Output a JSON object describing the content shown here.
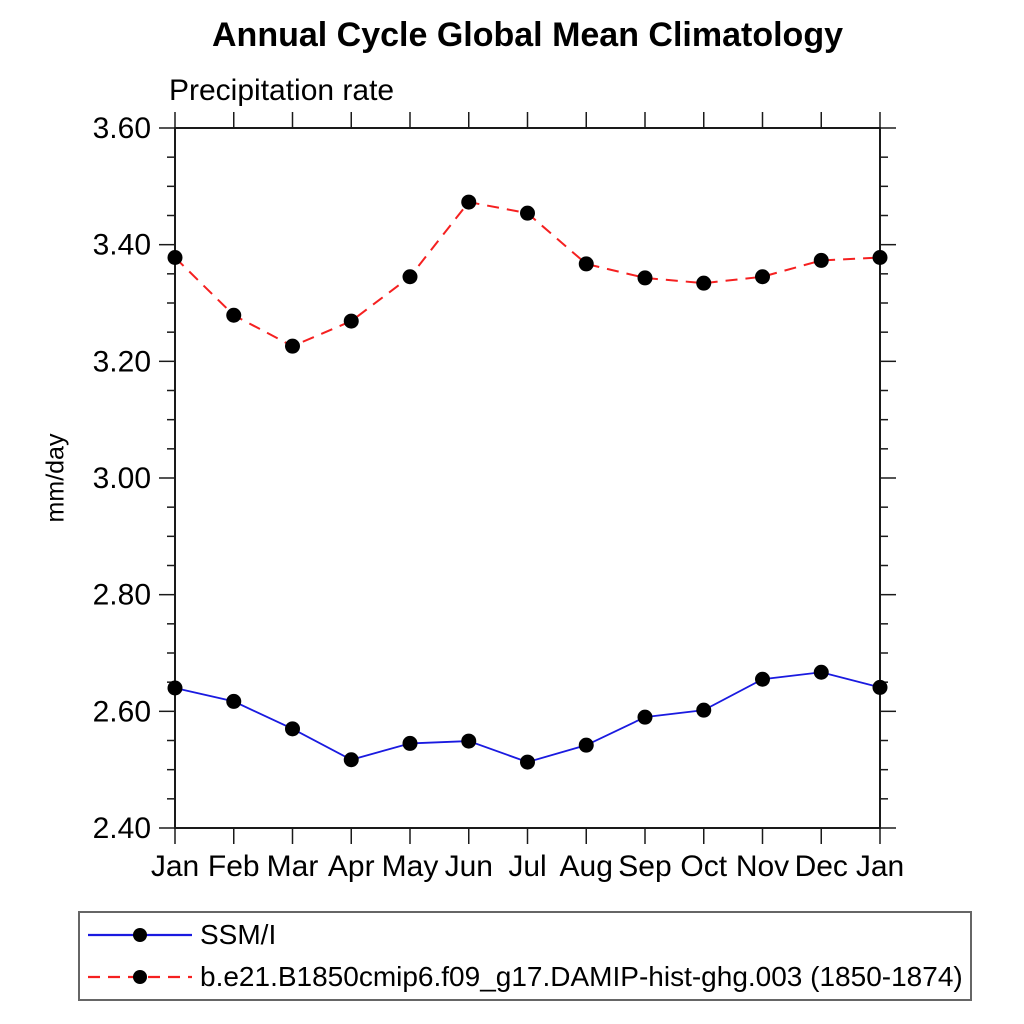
{
  "title": "Annual Cycle Global Mean Climatology",
  "subtitle": "Precipitation rate",
  "ylabel": "mm/day",
  "chart_data": {
    "type": "line",
    "title": "Annual Cycle Global Mean Climatology",
    "subtitle": "Precipitation rate",
    "xlabel": "",
    "ylabel": "mm/day",
    "categories": [
      "Jan",
      "Feb",
      "Mar",
      "Apr",
      "May",
      "Jun",
      "Jul",
      "Aug",
      "Sep",
      "Oct",
      "Nov",
      "Dec",
      "Jan"
    ],
    "ylim": [
      2.4,
      3.6
    ],
    "ytick_labels": [
      "2.40",
      "2.60",
      "2.80",
      "3.00",
      "3.20",
      "3.40",
      "3.60"
    ],
    "ytick_major_step": 0.2,
    "ytick_minor_step": 0.05,
    "grid": false,
    "legend_position": "bottom-left-box",
    "axis_color": "#1a1a1a",
    "marker_color": "#000000",
    "series": [
      {
        "name": "SSM/I",
        "color": "#1a1ae0",
        "line_style": "solid",
        "values": [
          2.64,
          2.617,
          2.57,
          2.517,
          2.545,
          2.549,
          2.513,
          2.542,
          2.59,
          2.602,
          2.655,
          2.667,
          2.641
        ]
      },
      {
        "name": "b.e21.B1850cmip6.f09_g17.DAMIP-hist-ghg.003 (1850-1874)",
        "color": "#f52020",
        "line_style": "dashed",
        "values": [
          3.378,
          3.279,
          3.226,
          3.269,
          3.345,
          3.473,
          3.454,
          3.367,
          3.343,
          3.334,
          3.345,
          3.373,
          3.378
        ]
      }
    ]
  }
}
